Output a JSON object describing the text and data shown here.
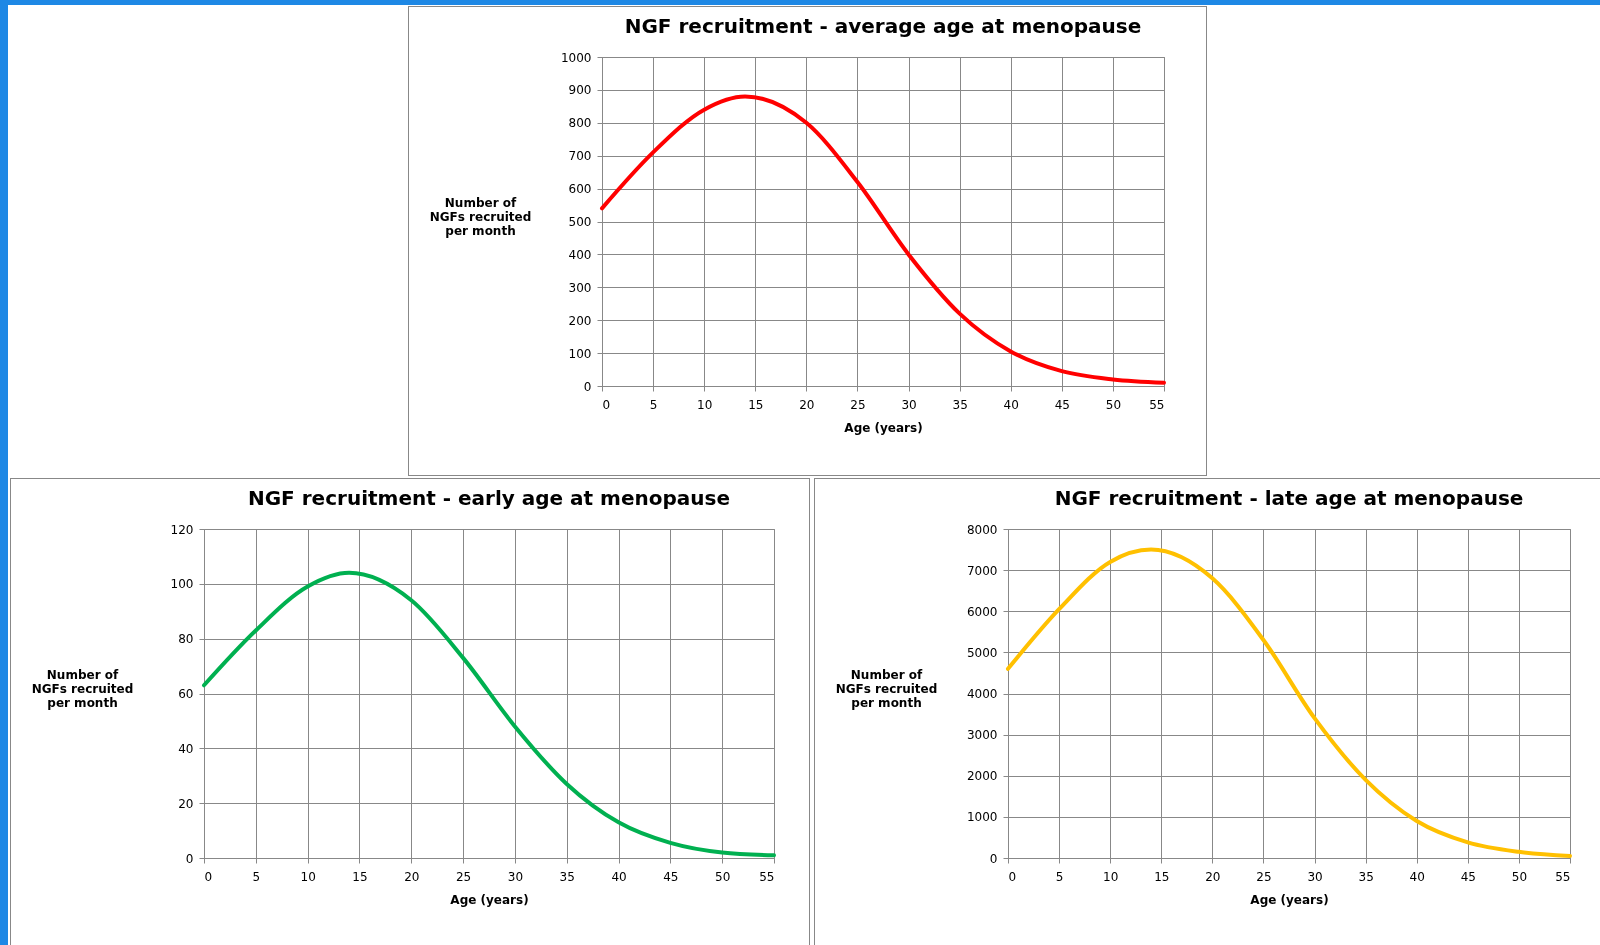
{
  "chart_data": [
    {
      "type": "line",
      "title": "NGF recruitment - average age at menopause",
      "xlabel": "Age (years)",
      "ylabel": "Number of\nNGFs recruited\nper month",
      "grid": true,
      "marker": "none",
      "line_style": "solid",
      "xlim": [
        0,
        55
      ],
      "xticks": [
        0,
        5,
        10,
        15,
        20,
        25,
        30,
        35,
        40,
        45,
        50,
        55
      ],
      "ylim": [
        0,
        1000
      ],
      "yticks": [
        0,
        100,
        200,
        300,
        400,
        500,
        600,
        700,
        800,
        900,
        1000
      ],
      "x": [
        0,
        5,
        10,
        14,
        20,
        25,
        30,
        35,
        40,
        45,
        50,
        55
      ],
      "series": [
        {
          "color": "#ff0000",
          "values": [
            540,
            710,
            840,
            880,
            800,
            620,
            400,
            220,
            105,
            45,
            20,
            10
          ]
        }
      ]
    },
    {
      "type": "line",
      "title": "NGF recruitment - early age at menopause",
      "xlabel": "Age (years)",
      "ylabel": "Number of\nNGFs recruited\nper month",
      "grid": true,
      "marker": "none",
      "line_style": "solid",
      "xlim": [
        0,
        55
      ],
      "xticks": [
        0,
        5,
        10,
        15,
        20,
        25,
        30,
        35,
        40,
        45,
        50,
        55
      ],
      "ylim": [
        0,
        120
      ],
      "yticks": [
        0,
        20,
        40,
        60,
        80,
        100,
        120
      ],
      "x": [
        0,
        5,
        10,
        14,
        20,
        25,
        30,
        35,
        40,
        45,
        50,
        55
      ],
      "series": [
        {
          "color": "#00b050",
          "values": [
            63,
            83,
            99,
            104,
            94,
            73,
            48,
            27,
            13,
            5.5,
            2,
            1
          ]
        }
      ]
    },
    {
      "type": "line",
      "title": "NGF recruitment - late age at menopause",
      "xlabel": "Age (years)",
      "ylabel": "Number of\nNGFs recruited\nper month",
      "grid": true,
      "marker": "none",
      "line_style": "solid",
      "xlim": [
        0,
        55
      ],
      "xticks": [
        0,
        5,
        10,
        15,
        20,
        25,
        30,
        35,
        40,
        45,
        50,
        55
      ],
      "ylim": [
        0,
        8000
      ],
      "yticks": [
        0,
        1000,
        2000,
        3000,
        4000,
        5000,
        6000,
        7000,
        8000
      ],
      "x": [
        0,
        5,
        10,
        14,
        20,
        25,
        30,
        35,
        40,
        45,
        50,
        55
      ],
      "series": [
        {
          "color": "#ffc000",
          "values": [
            4600,
            6050,
            7200,
            7500,
            6800,
            5300,
            3400,
            1900,
            900,
            380,
            150,
            50
          ]
        }
      ]
    }
  ]
}
